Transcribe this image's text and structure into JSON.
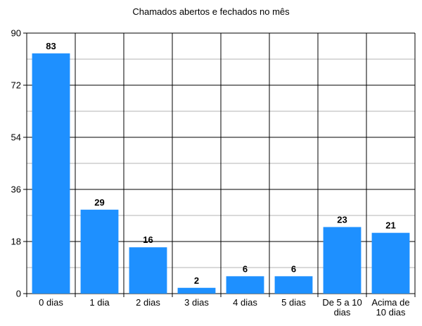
{
  "chart_data": {
    "type": "bar",
    "title": "Chamados abertos e fechados no mês",
    "xlabel": "",
    "ylabel": "",
    "categories": [
      "0 dias",
      "1 dia",
      "2 dias",
      "3 dias",
      "4 dias",
      "5 dias",
      "De 5 a 10 dias",
      "Acima de 10 dias"
    ],
    "category_lines": [
      [
        "0 dias"
      ],
      [
        "1 dia"
      ],
      [
        "2 dias"
      ],
      [
        "3 dias"
      ],
      [
        "4 dias"
      ],
      [
        "5 dias"
      ],
      [
        "De 5 a 10",
        "dias"
      ],
      [
        "Acima de",
        "10 dias"
      ]
    ],
    "values": [
      83,
      29,
      16,
      2,
      6,
      6,
      23,
      21
    ],
    "ylim": [
      0,
      90
    ],
    "yticks": [
      0,
      18,
      36,
      54,
      72,
      90
    ],
    "grid": true,
    "bar_color": "#1e90ff",
    "legend": "none"
  }
}
